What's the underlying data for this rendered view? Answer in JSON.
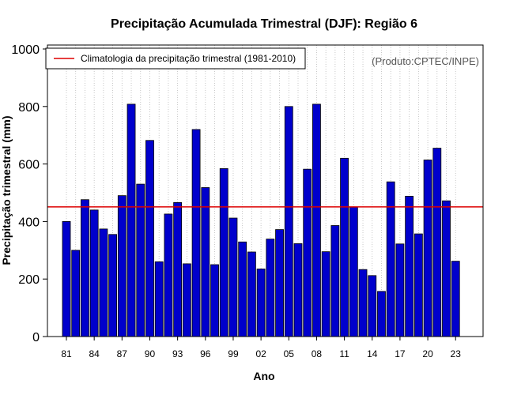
{
  "chart_data": {
    "type": "bar",
    "title": "Precipitação Acumulada Trimestral (DJF): Região 6",
    "xlabel": "Ano",
    "ylabel": "Precipitação trimestral (mm)",
    "ylim": [
      0,
      1000
    ],
    "yticks": [
      0,
      200,
      400,
      600,
      800,
      1000
    ],
    "years": [
      1981,
      1982,
      1983,
      1984,
      1985,
      1986,
      1987,
      1988,
      1989,
      1990,
      1991,
      1992,
      1993,
      1994,
      1995,
      1996,
      1997,
      1998,
      1999,
      2000,
      2001,
      2002,
      2003,
      2004,
      2005,
      2006,
      2007,
      2008,
      2009,
      2010,
      2011,
      2012,
      2013,
      2014,
      2015,
      2016,
      2017,
      2018,
      2019,
      2020,
      2021,
      2022,
      2023
    ],
    "values": [
      400,
      300,
      476,
      440,
      374,
      355,
      490,
      808,
      530,
      682,
      260,
      426,
      466,
      253,
      720,
      518,
      250,
      584,
      412,
      329,
      294,
      235,
      339,
      372,
      800,
      323,
      582,
      808,
      295,
      386,
      620,
      450,
      233,
      212,
      157,
      538,
      322,
      488,
      357,
      614,
      655,
      472,
      262
    ],
    "xtick_labels": [
      "81",
      "84",
      "87",
      "90",
      "93",
      "96",
      "99",
      "02",
      "05",
      "08",
      "11",
      "14",
      "17",
      "20",
      "23"
    ],
    "climatology": {
      "value": 451,
      "label": "Climatologia da precipitação trimestral (1981-2010)",
      "color": "#dd0000"
    },
    "bar_color": "#0000cc",
    "grid": "vertical dotted",
    "legend_position": "top-left",
    "note": "(Produto:CPTEC/INPE)"
  }
}
